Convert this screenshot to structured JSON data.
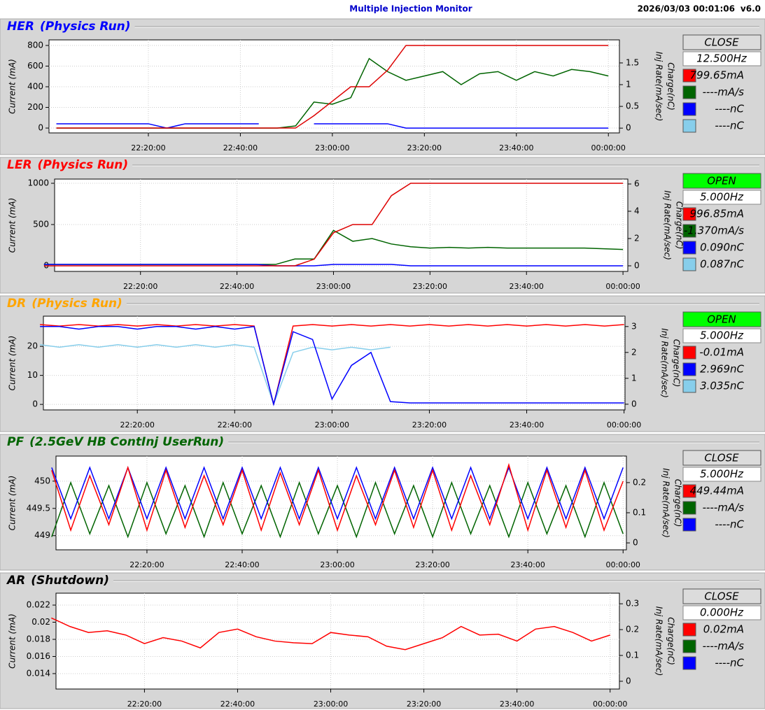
{
  "header": {
    "title": "Multiple Injection Monitor",
    "timestamp": "2026/03/03 00:01:06",
    "version": "v6.0"
  },
  "panels": [
    {
      "name": "HER",
      "mode": "(Physics Run)",
      "color": "#0000ff",
      "button": "CLOSE",
      "button_color": "#dcdcdc",
      "rate": "12.500Hz",
      "readouts": [
        {
          "text": "799.65mA",
          "color": "#ff0000"
        },
        {
          "text": "----mA/s",
          "color": "#006400"
        },
        {
          "text": "----nC",
          "color": "#0000ff"
        },
        {
          "text": "----nC",
          "color": "#87ceeb"
        }
      ],
      "chart": {
        "type": "line",
        "ylabel": "Current (mA)",
        "y2label": [
          "Charge(nC)",
          "Inj Rate(mA/sec)"
        ],
        "grid": true,
        "x": [
          1320,
          1324,
          1328,
          1332,
          1336,
          1340,
          1344,
          1348,
          1352,
          1356,
          1360,
          1364,
          1368,
          1372,
          1376,
          1380,
          1384,
          1388,
          1392,
          1396,
          1400,
          1404,
          1408,
          1412,
          1416,
          1420,
          1424,
          1428,
          1432,
          1436,
          1440
        ],
        "xlim": [
          1318.4,
          1442.4
        ],
        "xticks": [
          {
            "value": 1340,
            "label": "22:20:00"
          },
          {
            "value": 1360,
            "label": "22:40:00"
          },
          {
            "value": 1380,
            "label": "23:00:00"
          },
          {
            "value": 1400,
            "label": "23:20:00"
          },
          {
            "value": 1420,
            "label": "23:40:00"
          },
          {
            "value": 1440,
            "label": "00:00:00"
          }
        ],
        "ylim": [
          -47,
          854
        ],
        "yticks": [
          0,
          200,
          400,
          600,
          800
        ],
        "y2lim": [
          -0.11,
          2.03
        ],
        "y2ticks": [
          0,
          0.5,
          1,
          1.5
        ],
        "series": [
          {
            "color": "#006400",
            "axis": "y2",
            "values": [
              0,
              0,
              0,
              0,
              0,
              0,
              0,
              0,
              0,
              0,
              0,
              0,
              0,
              0.05,
              0.6,
              0.55,
              0.7,
              1.6,
              1.3,
              1.1,
              1.2,
              1.3,
              1.0,
              1.25,
              1.3,
              1.1,
              1.3,
              1.2,
              1.35,
              1.3,
              1.2
            ]
          },
          {
            "color": "#0000ff",
            "axis": "y2",
            "values": [
              0.1,
              0.1,
              0.1,
              0.1,
              0.1,
              0.1,
              0,
              0.1,
              0.1,
              0.1,
              0.1,
              0.1,
              null,
              null,
              0.1,
              0.1,
              0.1,
              0.1,
              0.1,
              0,
              0,
              0,
              0,
              0,
              0,
              0,
              0,
              0,
              0,
              0,
              0
            ]
          },
          {
            "color": "#dd0000",
            "values": [
              0,
              0,
              0,
              0,
              0,
              0,
              0,
              0,
              0,
              0,
              0,
              0,
              0,
              0,
              120,
              260,
              400,
              400,
              560,
              800,
              800,
              800,
              800,
              800,
              800,
              800,
              800,
              800,
              800,
              800,
              800
            ]
          }
        ]
      }
    },
    {
      "name": "LER",
      "mode": "(Physics Run)",
      "color": "#ff0000",
      "button": "OPEN",
      "button_color": "#00ff00",
      "rate": "5.000Hz",
      "readouts": [
        {
          "text": "996.85mA",
          "color": "#ff0000"
        },
        {
          "text": "-1.370mA/s",
          "color": "#006400"
        },
        {
          "text": "0.090nC",
          "color": "#0000ff"
        },
        {
          "text": "0.087nC",
          "color": "#87ceeb"
        }
      ],
      "chart": {
        "type": "line",
        "ylabel": "Current (mA)",
        "y2label": [
          "Charge(nC)",
          "Inj Rate(mA/sec)"
        ],
        "grid": true,
        "x": [
          1320,
          1324,
          1328,
          1332,
          1336,
          1340,
          1344,
          1348,
          1352,
          1356,
          1360,
          1364,
          1368,
          1372,
          1376,
          1380,
          1384,
          1388,
          1392,
          1396,
          1400,
          1404,
          1408,
          1412,
          1416,
          1420,
          1424,
          1428,
          1432,
          1436,
          1440
        ],
        "xlim": [
          1322.2,
          1441
        ],
        "xticks": [
          {
            "value": 1340,
            "label": "22:20:00"
          },
          {
            "value": 1360,
            "label": "22:40:00"
          },
          {
            "value": 1380,
            "label": "23:00:00"
          },
          {
            "value": 1400,
            "label": "23:20:00"
          },
          {
            "value": 1420,
            "label": "23:40:00"
          },
          {
            "value": 1440,
            "label": "00:00:00"
          }
        ],
        "ylim": [
          -68,
          1051
        ],
        "yticks": [
          0,
          500,
          1000
        ],
        "y2lim": [
          -0.41,
          6.36
        ],
        "y2ticks": [
          0,
          2,
          4,
          6
        ],
        "series": [
          {
            "color": "#006400",
            "axis": "y2",
            "values": [
              0.1,
              0.1,
              0.1,
              0.1,
              0.1,
              0.1,
              0.1,
              0.1,
              0.1,
              0.1,
              0.1,
              0.1,
              0.1,
              0.5,
              0.5,
              2.6,
              1.8,
              2.0,
              1.6,
              1.4,
              1.3,
              1.35,
              1.3,
              1.35,
              1.3,
              1.3,
              1.3,
              1.3,
              1.3,
              1.25,
              1.2
            ]
          },
          {
            "color": "#0000ff",
            "axis": "y2",
            "values": [
              0.1,
              0.1,
              0.1,
              0.1,
              0.1,
              0.1,
              0.1,
              0.1,
              0.1,
              0.1,
              0.1,
              0.1,
              0,
              0,
              0,
              0.1,
              0.1,
              0.1,
              0.1,
              0,
              0,
              0,
              0,
              0,
              0,
              0,
              0,
              0,
              0,
              0,
              0
            ]
          },
          {
            "color": "#dd0000",
            "values": [
              0,
              0,
              0,
              0,
              0,
              0,
              0,
              0,
              0,
              0,
              0,
              0,
              0,
              0,
              80,
              400,
              500,
              500,
              850,
              1000,
              1000,
              1000,
              1000,
              1000,
              1000,
              1000,
              1000,
              1000,
              1000,
              1000,
              1000
            ]
          }
        ]
      }
    },
    {
      "name": "DR",
      "mode": "(Physics Run)",
      "color": "#ffa500",
      "button": "OPEN",
      "button_color": "#00ff00",
      "rate": "5.000Hz",
      "readouts": [
        {
          "text": "-0.01mA",
          "color": "#ff0000"
        },
        {
          "text": "2.969nC",
          "color": "#0000ff"
        },
        {
          "text": "3.035nC",
          "color": "#87ceeb"
        }
      ],
      "chart": {
        "type": "line",
        "ylabel": "Current (mA)",
        "y2label": [
          "Charge(nC)",
          "Inj Rate(mA/sec)"
        ],
        "grid": true,
        "x": [
          1320,
          1324,
          1328,
          1332,
          1336,
          1340,
          1344,
          1348,
          1352,
          1356,
          1360,
          1364,
          1368,
          1372,
          1376,
          1380,
          1384,
          1388,
          1392,
          1396,
          1400,
          1404,
          1408,
          1412,
          1416,
          1420,
          1424,
          1428,
          1432,
          1436,
          1440
        ],
        "xlim": [
          1320.7,
          1440.2
        ],
        "xticks": [
          {
            "value": 1340,
            "label": "22:20:00"
          },
          {
            "value": 1360,
            "label": "22:40:00"
          },
          {
            "value": 1380,
            "label": "23:00:00"
          },
          {
            "value": 1400,
            "label": "23:20:00"
          },
          {
            "value": 1420,
            "label": "23:40:00"
          },
          {
            "value": 1440,
            "label": "00:00:00"
          }
        ],
        "ylim": [
          -1.9,
          30.4
        ],
        "yticks": [
          0,
          10,
          20
        ],
        "y2lim": [
          -0.22,
          3.4
        ],
        "y2ticks": [
          0,
          1,
          2,
          3
        ],
        "series": [
          {
            "color": "#87ceeb",
            "axis": "y2",
            "values": [
              2.3,
              2.2,
              2.3,
              2.2,
              2.3,
              2.2,
              2.3,
              2.2,
              2.3,
              2.2,
              2.3,
              2.2,
              0,
              2.0,
              2.2,
              2.1,
              2.2,
              2.1,
              2.2,
              null,
              null,
              null,
              null,
              null,
              null,
              null,
              null,
              null,
              null,
              null,
              null
            ]
          },
          {
            "color": "#ff0000",
            "values": [
              27.5,
              27,
              27.5,
              27,
              27.5,
              27,
              27.5,
              27,
              27.5,
              27,
              27.5,
              27,
              0,
              27,
              27.5,
              27,
              27.5,
              27,
              27.5,
              27,
              27.5,
              27,
              27.5,
              27,
              27.5,
              27,
              27.5,
              27,
              27.5,
              27,
              27.5
            ]
          },
          {
            "color": "#0000ff",
            "axis": "y2",
            "values": [
              3.0,
              3.0,
              2.9,
              3.0,
              3.0,
              2.9,
              3.0,
              3.0,
              2.9,
              3.0,
              2.9,
              3.0,
              0,
              2.8,
              2.5,
              0.2,
              1.5,
              2.0,
              0.1,
              0.05,
              0.05,
              0.05,
              0.05,
              0.05,
              0.05,
              0.05,
              0.05,
              0.05,
              0.05,
              0.05,
              0.05
            ]
          }
        ]
      }
    },
    {
      "name": "PF",
      "mode": "(2.5GeV HB ContInj UserRun)",
      "color": "#006400",
      "button": "CLOSE",
      "button_color": "#dcdcdc",
      "rate": "5.000Hz",
      "readouts": [
        {
          "text": "449.44mA",
          "color": "#ff0000"
        },
        {
          "text": "----mA/s",
          "color": "#006400"
        },
        {
          "text": "----nC",
          "color": "#0000ff"
        }
      ],
      "chart": {
        "type": "line",
        "ylabel": "Current (mA)",
        "y2label": [
          "Charge(nC)",
          "Inj Rate(mA/sec)"
        ],
        "grid": true,
        "x": [
          1320,
          1324,
          1328,
          1332,
          1336,
          1340,
          1344,
          1348,
          1352,
          1356,
          1360,
          1364,
          1368,
          1372,
          1376,
          1380,
          1384,
          1388,
          1392,
          1396,
          1400,
          1404,
          1408,
          1412,
          1416,
          1420,
          1424,
          1428,
          1432,
          1436,
          1440
        ],
        "xlim": [
          1320.9,
          1440.7
        ],
        "xticks": [
          {
            "value": 1340,
            "label": "22:20:00"
          },
          {
            "value": 1360,
            "label": "22:40:00"
          },
          {
            "value": 1380,
            "label": "23:00:00"
          },
          {
            "value": 1400,
            "label": "23:20:00"
          },
          {
            "value": 1420,
            "label": "23:40:00"
          },
          {
            "value": 1440,
            "label": "00:00:00"
          }
        ],
        "ylim": [
          448.74,
          450.46
        ],
        "yticks": [
          449,
          449.5,
          450
        ],
        "y2lim": [
          -0.023,
          0.288
        ],
        "y2ticks": [
          0,
          0.1,
          0.2
        ],
        "series": [
          {
            "color": "#006400",
            "axis": "y2",
            "values": [
              0.02,
              0.2,
              0.03,
              0.19,
              0.02,
              0.2,
              0.03,
              0.19,
              0.02,
              0.2,
              0.03,
              0.19,
              0.02,
              0.2,
              0.03,
              0.19,
              0.02,
              0.2,
              0.03,
              0.19,
              0.02,
              0.2,
              0.03,
              0.19,
              0.02,
              0.2,
              0.03,
              0.19,
              0.02,
              0.2,
              0.03
            ]
          },
          {
            "color": "#0000ff",
            "axis": "y2",
            "values": [
              0.25,
              0.08,
              0.25,
              0.08,
              0.25,
              0.08,
              0.25,
              0.08,
              0.25,
              0.08,
              0.25,
              0.08,
              0.25,
              0.08,
              0.25,
              0.08,
              0.25,
              0.08,
              0.25,
              0.08,
              0.25,
              0.08,
              0.25,
              0.08,
              0.25,
              0.08,
              0.25,
              0.08,
              0.25,
              0.08,
              0.25
            ]
          },
          {
            "color": "#ff0000",
            "values": [
              450.2,
              449.1,
              450.1,
              449.2,
              450.25,
              449.1,
              450.2,
              449.15,
              450.1,
              449.2,
              450.2,
              449.1,
              450.15,
              449.2,
              450.2,
              449.1,
              450.1,
              449.2,
              450.2,
              449.15,
              450.2,
              449.1,
              450.1,
              449.2,
              450.3,
              449.1,
              450.2,
              449.15,
              450.2,
              449.1,
              450.0
            ]
          }
        ]
      }
    },
    {
      "name": "AR",
      "mode": "(Shutdown)",
      "color": "#000000",
      "button": "CLOSE",
      "button_color": "#dcdcdc",
      "rate": "0.000Hz",
      "readouts": [
        {
          "text": "0.02mA",
          "color": "#ff0000"
        },
        {
          "text": "----mA/s",
          "color": "#006400"
        },
        {
          "text": "----nC",
          "color": "#0000ff"
        }
      ],
      "chart": {
        "type": "line",
        "ylabel": "Current (mA)",
        "y2label": [
          "Charge(nC)",
          "Inj Rate(mA/sec)"
        ],
        "grid": true,
        "x": [
          1320,
          1324,
          1328,
          1332,
          1336,
          1340,
          1344,
          1348,
          1352,
          1356,
          1360,
          1364,
          1368,
          1372,
          1376,
          1380,
          1384,
          1388,
          1392,
          1396,
          1400,
          1404,
          1408,
          1412,
          1416,
          1420,
          1424,
          1428,
          1432,
          1436,
          1440
        ],
        "xlim": [
          1321,
          1442
        ],
        "xticks": [
          {
            "value": 1340,
            "label": "22:20:00"
          },
          {
            "value": 1360,
            "label": "22:40:00"
          },
          {
            "value": 1380,
            "label": "23:00:00"
          },
          {
            "value": 1400,
            "label": "23:20:00"
          },
          {
            "value": 1420,
            "label": "23:40:00"
          },
          {
            "value": 1440,
            "label": "00:00:00"
          }
        ],
        "ylim": [
          0.0122,
          0.02339
        ],
        "yticks": [
          0.014,
          0.016,
          0.018,
          0.02,
          0.022
        ],
        "y2lim": [
          -0.03,
          0.341
        ],
        "y2ticks": [
          0,
          0.1,
          0.2,
          0.3
        ],
        "series": [
          {
            "color": "#ff0000",
            "values": [
              0.0205,
              0.0195,
              0.0188,
              0.019,
              0.0185,
              0.0175,
              0.0182,
              0.0178,
              0.017,
              0.0188,
              0.0192,
              0.0183,
              0.0178,
              0.0176,
              0.0175,
              0.0188,
              0.0185,
              0.0183,
              0.0172,
              0.0168,
              0.0175,
              0.0182,
              0.0195,
              0.0185,
              0.0186,
              0.0178,
              0.0192,
              0.0195,
              0.0188,
              0.0178,
              0.0185
            ]
          }
        ]
      }
    }
  ]
}
